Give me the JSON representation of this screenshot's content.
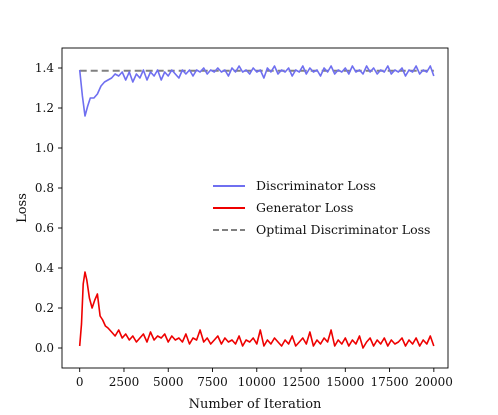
{
  "chart_data": {
    "type": "line",
    "title": "",
    "xlabel": "Number of Iteration",
    "ylabel": "Loss",
    "xlim": [
      -1000,
      20800
    ],
    "ylim": [
      -0.1,
      1.5
    ],
    "xticks": [
      0,
      2500,
      5000,
      7500,
      10000,
      12500,
      15000,
      17500,
      20000
    ],
    "yticks": [
      0.0,
      0.2,
      0.4,
      0.6,
      0.8,
      1.0,
      1.2,
      1.4
    ],
    "ytick_labels": [
      "0.0",
      "0.2",
      "0.4",
      "0.6",
      "0.8",
      "1.0",
      "1.2",
      "1.4"
    ],
    "grid": false,
    "legend_position": "center-right",
    "series": [
      {
        "name": "Discriminator Loss",
        "color": "#6f6ff0",
        "style": "solid",
        "x": [
          0,
          150,
          300,
          450,
          600,
          800,
          1000,
          1200,
          1400,
          1600,
          1800,
          2000,
          2200,
          2400,
          2600,
          2800,
          3000,
          3200,
          3400,
          3600,
          3800,
          4000,
          4200,
          4400,
          4600,
          4800,
          5000,
          5200,
          5400,
          5600,
          5800,
          6000,
          6200,
          6400,
          6600,
          6800,
          7000,
          7200,
          7400,
          7600,
          7800,
          8000,
          8200,
          8400,
          8600,
          8800,
          9000,
          9200,
          9400,
          9600,
          9800,
          10000,
          10200,
          10400,
          10600,
          10800,
          11000,
          11200,
          11400,
          11600,
          11800,
          12000,
          12200,
          12400,
          12600,
          12800,
          13000,
          13200,
          13400,
          13600,
          13800,
          14000,
          14200,
          14400,
          14600,
          14800,
          15000,
          15200,
          15400,
          15600,
          15800,
          16000,
          16200,
          16400,
          16600,
          16800,
          17000,
          17200,
          17400,
          17600,
          17800,
          18000,
          18200,
          18400,
          18600,
          18800,
          19000,
          19200,
          19400,
          19600,
          19800,
          20000
        ],
        "values": [
          1.39,
          1.26,
          1.16,
          1.21,
          1.25,
          1.25,
          1.27,
          1.31,
          1.33,
          1.34,
          1.35,
          1.37,
          1.36,
          1.38,
          1.34,
          1.38,
          1.33,
          1.37,
          1.35,
          1.39,
          1.34,
          1.38,
          1.36,
          1.39,
          1.34,
          1.38,
          1.36,
          1.39,
          1.37,
          1.35,
          1.39,
          1.37,
          1.39,
          1.36,
          1.39,
          1.38,
          1.4,
          1.37,
          1.39,
          1.38,
          1.4,
          1.38,
          1.39,
          1.36,
          1.4,
          1.38,
          1.41,
          1.38,
          1.39,
          1.37,
          1.4,
          1.38,
          1.39,
          1.35,
          1.4,
          1.38,
          1.41,
          1.37,
          1.39,
          1.38,
          1.4,
          1.36,
          1.39,
          1.38,
          1.41,
          1.37,
          1.4,
          1.38,
          1.39,
          1.36,
          1.4,
          1.38,
          1.41,
          1.37,
          1.39,
          1.38,
          1.4,
          1.37,
          1.41,
          1.38,
          1.39,
          1.37,
          1.41,
          1.38,
          1.4,
          1.37,
          1.39,
          1.38,
          1.41,
          1.37,
          1.39,
          1.38,
          1.4,
          1.36,
          1.39,
          1.38,
          1.41,
          1.37,
          1.39,
          1.38,
          1.41,
          1.36
        ]
      },
      {
        "name": "Generator Loss",
        "color": "#ee0000",
        "style": "solid",
        "x": [
          0,
          100,
          200,
          300,
          400,
          550,
          700,
          850,
          1000,
          1150,
          1300,
          1450,
          1600,
          1800,
          2000,
          2200,
          2400,
          2600,
          2800,
          3000,
          3200,
          3400,
          3600,
          3800,
          4000,
          4200,
          4400,
          4600,
          4800,
          5000,
          5200,
          5400,
          5600,
          5800,
          6000,
          6200,
          6400,
          6600,
          6800,
          7000,
          7200,
          7400,
          7600,
          7800,
          8000,
          8200,
          8400,
          8600,
          8800,
          9000,
          9200,
          9400,
          9600,
          9800,
          10000,
          10200,
          10400,
          10600,
          10800,
          11000,
          11200,
          11400,
          11600,
          11800,
          12000,
          12200,
          12400,
          12600,
          12800,
          13000,
          13200,
          13400,
          13600,
          13800,
          14000,
          14200,
          14400,
          14600,
          14800,
          15000,
          15200,
          15400,
          15600,
          15800,
          16000,
          16200,
          16400,
          16600,
          16800,
          17000,
          17200,
          17400,
          17600,
          17800,
          18000,
          18200,
          18400,
          18600,
          18800,
          19000,
          19200,
          19400,
          19600,
          19800,
          20000
        ],
        "values": [
          0.01,
          0.12,
          0.32,
          0.38,
          0.34,
          0.25,
          0.2,
          0.24,
          0.27,
          0.16,
          0.14,
          0.11,
          0.1,
          0.08,
          0.06,
          0.09,
          0.05,
          0.07,
          0.04,
          0.06,
          0.03,
          0.05,
          0.07,
          0.03,
          0.08,
          0.04,
          0.06,
          0.05,
          0.07,
          0.03,
          0.06,
          0.04,
          0.05,
          0.03,
          0.07,
          0.02,
          0.05,
          0.04,
          0.09,
          0.03,
          0.05,
          0.02,
          0.04,
          0.06,
          0.02,
          0.05,
          0.03,
          0.04,
          0.02,
          0.06,
          0.01,
          0.04,
          0.03,
          0.05,
          0.02,
          0.09,
          0.01,
          0.04,
          0.02,
          0.05,
          0.03,
          0.01,
          0.04,
          0.02,
          0.06,
          0.01,
          0.03,
          0.05,
          0.02,
          0.08,
          0.01,
          0.04,
          0.02,
          0.05,
          0.03,
          0.09,
          0.01,
          0.04,
          0.02,
          0.05,
          0.01,
          0.04,
          0.02,
          0.06,
          0.0,
          0.03,
          0.05,
          0.01,
          0.04,
          0.02,
          0.05,
          0.01,
          0.04,
          0.02,
          0.03,
          0.05,
          0.01,
          0.04,
          0.02,
          0.05,
          0.01,
          0.04,
          0.02,
          0.06,
          0.01
        ]
      },
      {
        "name": "Optimal Discriminator Loss",
        "color": "#808080",
        "style": "dashed",
        "x": [
          0,
          20000
        ],
        "values": [
          1.386,
          1.386
        ]
      }
    ]
  }
}
